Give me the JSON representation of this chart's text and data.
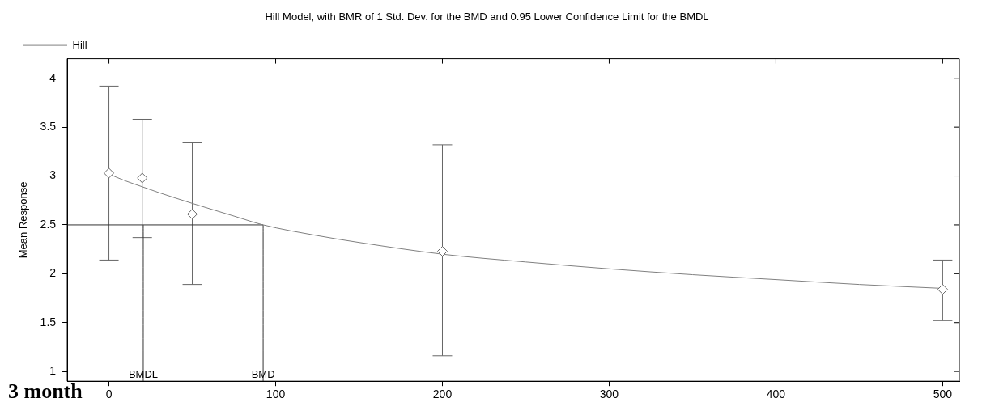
{
  "chart_data": {
    "type": "scatter",
    "title": "Hill Model, with BMR of 1 Std. Dev. for the BMD and 0.95 Lower Confidence Limit for the BMDL",
    "ylabel": "Mean Response",
    "xlim": [
      -25,
      510
    ],
    "ylim": [
      0.9,
      4.2
    ],
    "xticks": [
      0,
      100,
      200,
      300,
      400,
      500
    ],
    "yticks": [
      1,
      1.5,
      2,
      2.5,
      3,
      3.5,
      4
    ],
    "grid": false,
    "legend": "top left",
    "annotations": [
      {
        "text": "BMDL",
        "x": 20.6,
        "y": 0.9
      },
      {
        "text": "BMD",
        "x": 92.5,
        "y": 0.9
      },
      "3 month"
    ],
    "series": [
      {
        "type": "scatter",
        "color": "#666666",
        "marker": "diamond",
        "x": [
          0,
          20,
          50,
          200,
          500
        ],
        "values": [
          3.03,
          2.98,
          2.61,
          2.23,
          1.84
        ],
        "errors": [
          [
            2.14,
            3.92
          ],
          [
            2.37,
            3.58
          ],
          [
            1.89,
            3.34
          ],
          [
            1.16,
            3.32
          ],
          [
            1.52,
            2.14
          ]
        ]
      },
      {
        "type": "line",
        "name": "Hill",
        "color": "#808080",
        "marker": "none",
        "x": [
          0,
          10,
          20,
          30,
          50,
          75,
          92.5,
          125,
          150,
          200,
          250,
          300,
          350,
          400,
          450,
          500
        ],
        "values": [
          3.02,
          2.95,
          2.89,
          2.83,
          2.72,
          2.59,
          2.5,
          2.39,
          2.32,
          2.2,
          2.12,
          2.05,
          1.99,
          1.94,
          1.89,
          1.85
        ]
      },
      {
        "type": "line",
        "color": "#333333",
        "marker": "none",
        "x": [
          -25,
          92.5,
          92.5
        ],
        "values": [
          2.5,
          2.5,
          0.9
        ]
      },
      {
        "type": "line",
        "color": "#333333",
        "marker": "none",
        "x": [
          20.6,
          20.6
        ],
        "values": [
          2.5,
          0.9
        ]
      }
    ]
  }
}
